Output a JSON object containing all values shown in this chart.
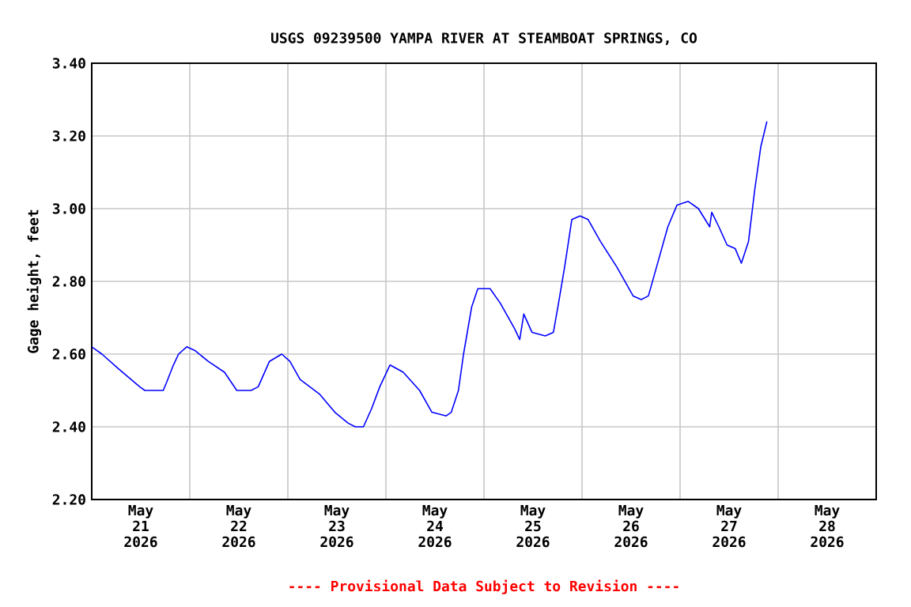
{
  "chart_data": {
    "type": "line",
    "title": "USGS 09239500 YAMPA RIVER AT STEAMBOAT SPRINGS, CO",
    "ylabel": "Gage height, feet",
    "annotations": [
      "---- Provisional Data Subject to Revision ----"
    ],
    "xlim": [
      "2026-05-21T00:00",
      "2026-05-29T00:00"
    ],
    "xticks": [
      {
        "value": "2026-05-22T00:00",
        "label": null
      },
      {
        "value": "2026-05-23T00:00",
        "label": null
      },
      {
        "value": "2026-05-24T00:00",
        "label": null
      },
      {
        "value": "2026-05-25T00:00",
        "label": null
      },
      {
        "value": "2026-05-26T00:00",
        "label": null
      },
      {
        "value": "2026-05-27T00:00",
        "label": null
      },
      {
        "value": "2026-05-28T00:00",
        "label": null
      },
      {
        "value": "2026-05-21T12:00",
        "label": "May 21 2026"
      },
      {
        "value": "2026-05-22T12:00",
        "label": "May 22 2026"
      },
      {
        "value": "2026-05-23T12:00",
        "label": "May 23 2026"
      },
      {
        "value": "2026-05-24T12:00",
        "label": "May 24 2026"
      },
      {
        "value": "2026-05-25T12:00",
        "label": "May 25 2026"
      },
      {
        "value": "2026-05-26T12:00",
        "label": "May 26 2026"
      },
      {
        "value": "2026-05-27T12:00",
        "label": "May 27 2026"
      },
      {
        "value": "2026-05-28T12:00",
        "label": "May 28 2026"
      }
    ],
    "ylim": [
      2.2,
      3.4
    ],
    "yticks": [
      {
        "value": 2.2,
        "label": "2.20"
      },
      {
        "value": 2.4,
        "label": "2.40"
      },
      {
        "value": 2.6,
        "label": "2.60"
      },
      {
        "value": 2.8,
        "label": "2.80"
      },
      {
        "value": 3.0,
        "label": "3.00"
      },
      {
        "value": 3.2,
        "label": "3.20"
      },
      {
        "value": 3.4,
        "label": "3.40"
      }
    ],
    "grid": true,
    "marker": "none",
    "line_style": "solid",
    "x": [
      "2026-05-21T00:00",
      "2026-05-21T02:30",
      "2026-05-21T06:30",
      "2026-05-21T11:45",
      "2026-05-21T13:00",
      "2026-05-21T17:30",
      "2026-05-21T18:15",
      "2026-05-21T20:00",
      "2026-05-21T21:15",
      "2026-05-21T23:15",
      "2026-05-22T01:15",
      "2026-05-22T04:30",
      "2026-05-22T08:30",
      "2026-05-22T11:30",
      "2026-05-22T15:00",
      "2026-05-22T16:45",
      "2026-05-22T19:30",
      "2026-05-22T22:30",
      "2026-05-23T00:30",
      "2026-05-23T03:00",
      "2026-05-23T07:45",
      "2026-05-23T11:30",
      "2026-05-23T14:45",
      "2026-05-23T16:30",
      "2026-05-23T18:30",
      "2026-05-23T20:30",
      "2026-05-23T22:30",
      "2026-05-24T01:00",
      "2026-05-24T04:15",
      "2026-05-24T08:15",
      "2026-05-24T11:15",
      "2026-05-24T14:45",
      "2026-05-24T16:00",
      "2026-05-24T17:45",
      "2026-05-24T19:00",
      "2026-05-24T21:00",
      "2026-05-24T22:30",
      "2026-05-25T01:30",
      "2026-05-25T04:00",
      "2026-05-25T07:30",
      "2026-05-25T08:45",
      "2026-05-25T09:45",
      "2026-05-25T11:45",
      "2026-05-25T15:00",
      "2026-05-25T17:00",
      "2026-05-25T18:15",
      "2026-05-25T19:45",
      "2026-05-25T21:30",
      "2026-05-25T23:30",
      "2026-05-26T01:30",
      "2026-05-26T04:00",
      "2026-05-26T04:30",
      "2026-05-26T08:30",
      "2026-05-26T12:30",
      "2026-05-26T14:30",
      "2026-05-26T16:15",
      "2026-05-26T18:15",
      "2026-05-26T21:00",
      "2026-05-26T23:15",
      "2026-05-27T02:00",
      "2026-05-27T04:30",
      "2026-05-27T07:15",
      "2026-05-27T07:45",
      "2026-05-27T09:30",
      "2026-05-27T11:30",
      "2026-05-27T13:30",
      "2026-05-27T15:00",
      "2026-05-27T16:45",
      "2026-05-27T18:15",
      "2026-05-27T19:45",
      "2026-05-27T21:15"
    ],
    "series": [
      {
        "color": "#0000ff",
        "values": [
          2.62,
          2.6,
          2.56,
          2.51,
          2.5,
          2.5,
          2.52,
          2.57,
          2.6,
          2.62,
          2.61,
          2.58,
          2.55,
          2.5,
          2.5,
          2.51,
          2.58,
          2.6,
          2.58,
          2.53,
          2.49,
          2.44,
          2.41,
          2.4,
          2.4,
          2.45,
          2.51,
          2.57,
          2.55,
          2.5,
          2.44,
          2.43,
          2.44,
          2.5,
          2.6,
          2.73,
          2.78,
          2.78,
          2.74,
          2.67,
          2.64,
          2.71,
          2.66,
          2.65,
          2.66,
          2.74,
          2.84,
          2.97,
          2.98,
          2.97,
          2.92,
          2.91,
          2.84,
          2.76,
          2.75,
          2.76,
          2.84,
          2.95,
          3.01,
          3.02,
          3.0,
          2.95,
          2.99,
          2.95,
          2.9,
          2.89,
          2.85,
          2.91,
          3.05,
          3.17,
          3.24
        ]
      }
    ]
  }
}
